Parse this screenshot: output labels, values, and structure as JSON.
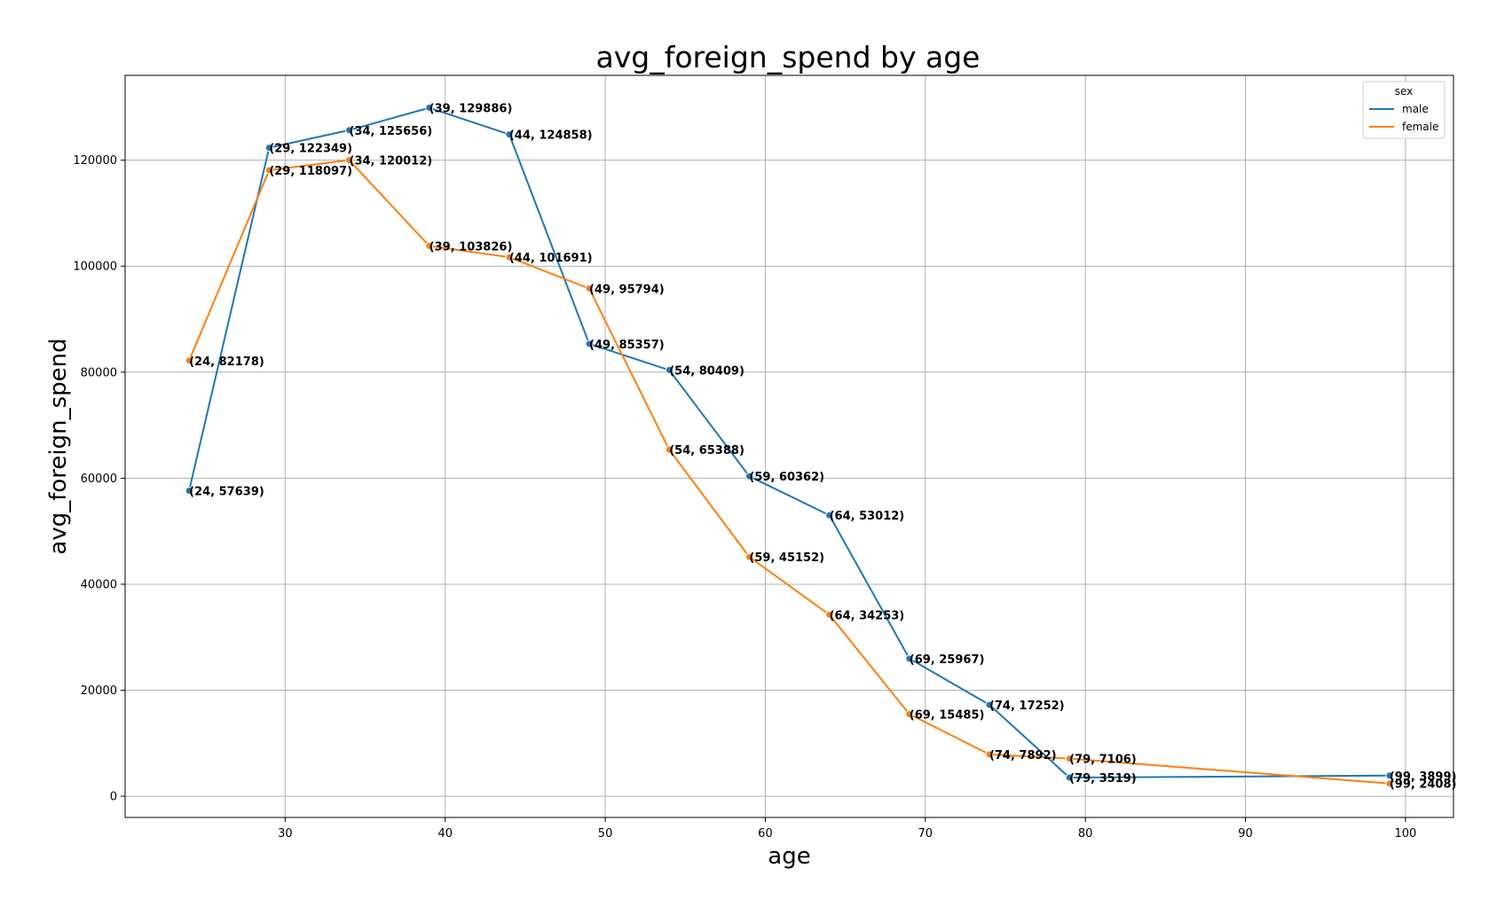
{
  "chart_data": {
    "type": "line",
    "title": "avg_foreign_spend by age",
    "xlabel": "age",
    "ylabel": "avg_foreign_spend",
    "xlim": [
      20,
      103
    ],
    "ylim": [
      -4000,
      136000
    ],
    "xticks": [
      30,
      40,
      50,
      60,
      70,
      80,
      90,
      100
    ],
    "yticks": [
      0,
      20000,
      40000,
      60000,
      80000,
      100000,
      120000
    ],
    "grid": true,
    "legend": {
      "title": "sex",
      "placement": "top-right"
    },
    "series": [
      {
        "name": "male",
        "color": "#1f77b4",
        "x": [
          24,
          29,
          34,
          39,
          44,
          49,
          54,
          59,
          64,
          69,
          74,
          79,
          99
        ],
        "y": [
          57639,
          122349,
          125656,
          129886,
          124858,
          85357,
          80409,
          60362,
          53012,
          25967,
          17252,
          3519,
          3899
        ],
        "labels": [
          "(24, 57639)",
          "(29, 122349)",
          "(34, 125656)",
          "(39, 129886)",
          "(44, 124858)",
          "(49, 85357)",
          "(54, 80409)",
          "(59, 60362)",
          "(64, 53012)",
          "(69, 25967)",
          "(74, 17252)",
          "(79, 3519)",
          "(99, 3899)"
        ]
      },
      {
        "name": "female",
        "color": "#ff7f0e",
        "x": [
          24,
          29,
          34,
          39,
          44,
          49,
          54,
          59,
          64,
          69,
          74,
          79,
          99
        ],
        "y": [
          82178,
          118097,
          120012,
          103826,
          101691,
          95794,
          65388,
          45152,
          34253,
          15485,
          7892,
          7106,
          2408
        ],
        "labels": [
          "(24, 82178)",
          "(29, 118097)",
          "(34, 120012)",
          "(39, 103826)",
          "(44, 101691)",
          "(49, 95794)",
          "(54, 65388)",
          "(59, 45152)",
          "(64, 34253)",
          "(69, 15485)",
          "(74, 7892)",
          "(79, 7106)",
          "(99, 2408)"
        ]
      }
    ]
  }
}
